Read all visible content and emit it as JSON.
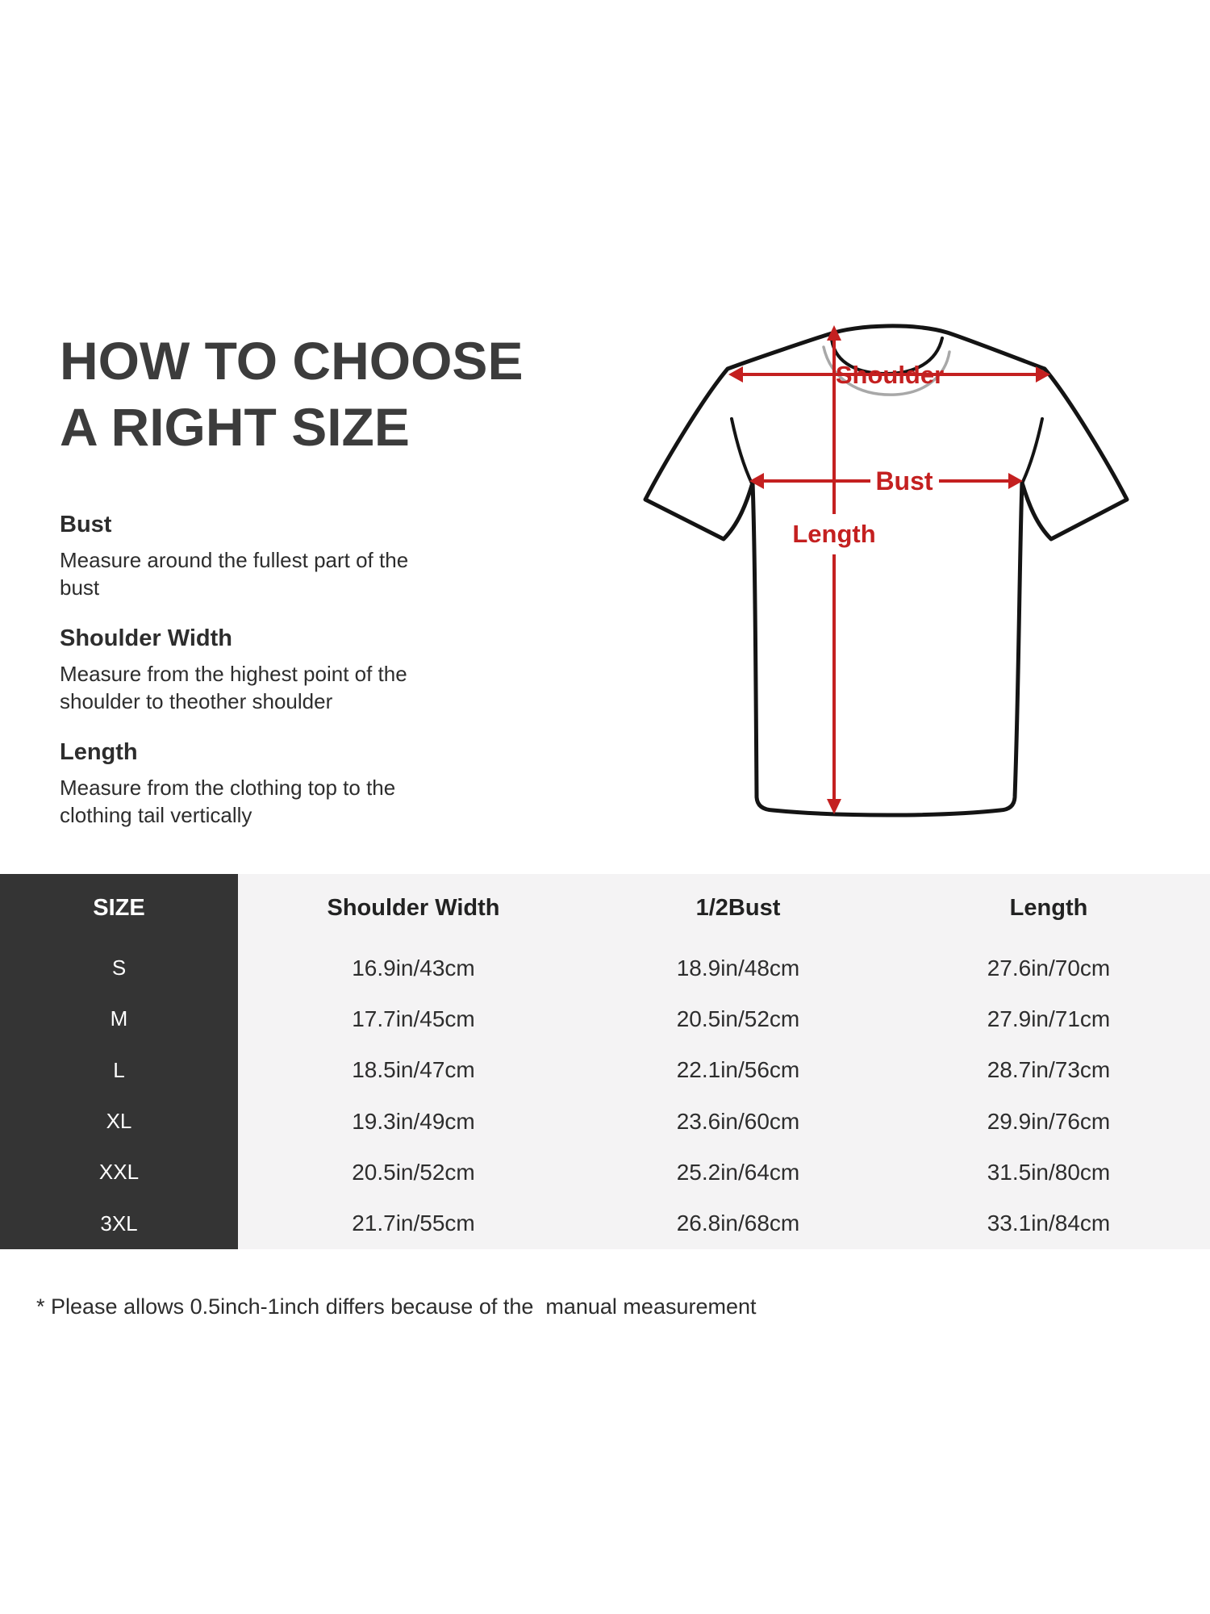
{
  "heading": {
    "line1": "HOW TO CHOOSE",
    "line2": "A RIGHT SIZE"
  },
  "instructions": [
    {
      "title": "Bust",
      "text": "Measure around the fullest part of the bust"
    },
    {
      "title": "Shoulder Width",
      "text": "Measure from the highest point of the shoulder to theother shoulder"
    },
    {
      "title": "Length",
      "text": "Measure from the clothing top to the clothing tail vertically"
    }
  ],
  "diagram": {
    "labels": {
      "shoulder": "Shoulder",
      "bust": "Bust",
      "length": "Length"
    },
    "arrow_color": "#c42020",
    "outline_color": "#141414"
  },
  "size_table": {
    "columns": [
      "SIZE",
      "Shoulder Width",
      "1/2Bust",
      "Length"
    ],
    "rows": [
      [
        "S",
        "16.9in/43cm",
        "18.9in/48cm",
        "27.6in/70cm"
      ],
      [
        "M",
        "17.7in/45cm",
        "20.5in/52cm",
        "27.9in/71cm"
      ],
      [
        "L",
        "18.5in/47cm",
        "22.1in/56cm",
        "28.7in/73cm"
      ],
      [
        "XL",
        "19.3in/49cm",
        "23.6in/60cm",
        "29.9in/76cm"
      ],
      [
        "XXL",
        "20.5in/52cm",
        "25.2in/64cm",
        "31.5in/80cm"
      ],
      [
        "3XL",
        "21.7in/55cm",
        "26.8in/68cm",
        "33.1in/84cm"
      ]
    ],
    "colors": {
      "size_column_bg": "#343434",
      "size_column_text": "#ffffff",
      "body_bg": "#f4f3f4",
      "body_text": "#2d2d2d"
    }
  },
  "footnote": "* Please allows 0.5inch-1inch differs because of the  manual measurement"
}
